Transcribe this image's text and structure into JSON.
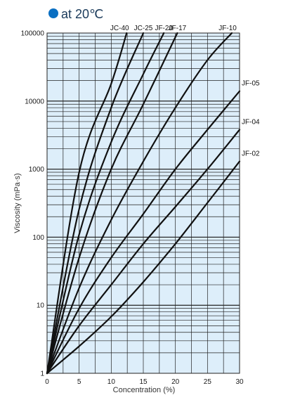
{
  "header": {
    "title": "at 20℃",
    "bullet_color": "#0a6fc2"
  },
  "colors": {
    "plot_background": "#ddeefa",
    "grid": "#222222",
    "series_line": "#111111"
  },
  "chart_data": {
    "type": "line",
    "title": "at 20℃",
    "xlabel": "Concentration (%)",
    "ylabel": "Viscosity (mPa·s)",
    "xlim": [
      0,
      30
    ],
    "ylim": [
      1,
      100000
    ],
    "yscale": "log",
    "grid": true,
    "xticks": [
      0,
      5,
      10,
      15,
      20,
      25,
      30
    ],
    "xtick_labels": [
      "0",
      "5",
      "10",
      "15",
      "20",
      "25",
      "30"
    ],
    "yticks": [
      1,
      10,
      100,
      1000,
      10000,
      100000
    ],
    "ytick_labels": [
      "1",
      "10",
      "100",
      "1000",
      "10000",
      "100000"
    ],
    "series": [
      {
        "name": "JC-40",
        "x": [
          0,
          5,
          10,
          12.4
        ],
        "y": [
          1,
          900,
          18000,
          100000
        ]
      },
      {
        "name": "JC-25",
        "x": [
          0,
          5,
          10,
          15
        ],
        "y": [
          1,
          260,
          8000,
          100000
        ]
      },
      {
        "name": "JF-20",
        "x": [
          0,
          5,
          10,
          15,
          18.2
        ],
        "y": [
          1,
          110,
          2500,
          25000,
          100000
        ]
      },
      {
        "name": "JF-17",
        "x": [
          0,
          5,
          10,
          15,
          20.3
        ],
        "y": [
          1,
          50,
          1000,
          9000,
          100000
        ]
      },
      {
        "name": "JF-10",
        "x": [
          0,
          5,
          10,
          15,
          20,
          25,
          28.8
        ],
        "y": [
          1,
          18,
          180,
          1300,
          8000,
          40000,
          100000
        ]
      },
      {
        "name": "JF-05",
        "x": [
          0,
          5,
          10,
          15,
          20,
          25,
          30
        ],
        "y": [
          1,
          9,
          50,
          220,
          1000,
          3800,
          14000
        ]
      },
      {
        "name": "JF-04",
        "x": [
          0,
          5,
          10,
          15,
          20,
          25,
          30
        ],
        "y": [
          1,
          5,
          20,
          80,
          280,
          1000,
          3800
        ]
      },
      {
        "name": "JF-02",
        "x": [
          0,
          5,
          10,
          15,
          20,
          25,
          30
        ],
        "y": [
          1,
          2.5,
          6.8,
          22,
          80,
          320,
          1300
        ]
      }
    ]
  }
}
